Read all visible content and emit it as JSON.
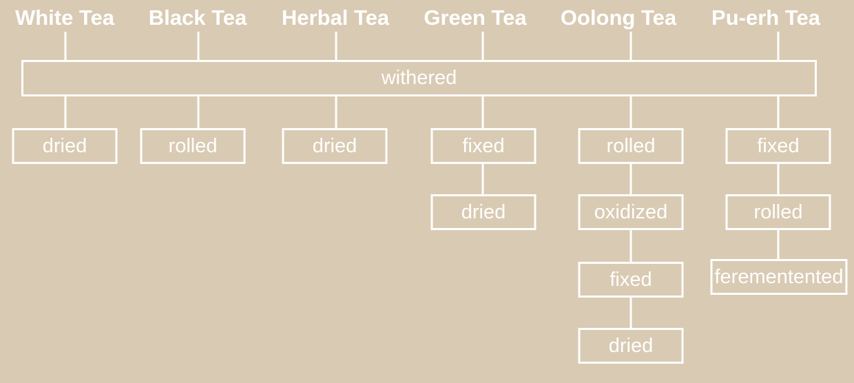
{
  "diagram": {
    "shared_step": "withered",
    "teas": [
      {
        "name": "White Tea",
        "steps_after": [
          "dried"
        ]
      },
      {
        "name": "Black Tea",
        "steps_after": [
          "rolled"
        ]
      },
      {
        "name": "Herbal Tea",
        "steps_after": [
          "dried"
        ]
      },
      {
        "name": "Green Tea",
        "steps_after": [
          "fixed",
          "dried"
        ]
      },
      {
        "name": "Oolong Tea",
        "steps_after": [
          "rolled",
          "oxidized",
          "fixed",
          "dried"
        ]
      },
      {
        "name": "Pu-erh Tea",
        "steps_after": [
          "fixed",
          "rolled",
          "ferementented"
        ]
      }
    ]
  },
  "colors": {
    "background": "#d9cab3",
    "foreground": "#ffffff"
  }
}
